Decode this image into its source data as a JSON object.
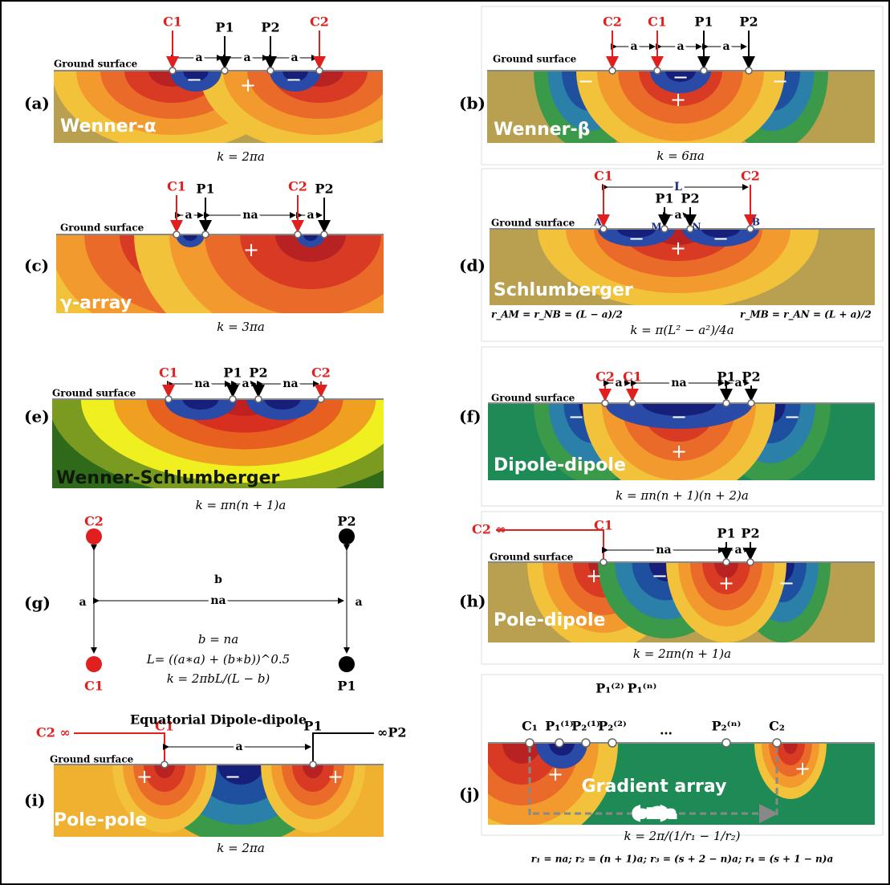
{
  "panels": [
    {
      "label": "(a)",
      "name": "Wenner-α",
      "ground": "Ground surface",
      "electrodes": [
        "C1",
        "P1",
        "P2",
        "C2"
      ],
      "spacings": [
        "a",
        "a",
        "a"
      ],
      "signs": [
        "−",
        "+",
        "−"
      ],
      "formula": "k = 2πa"
    },
    {
      "label": "(b)",
      "name": "Wenner-β",
      "ground": "Ground surface",
      "electrodes": [
        "C2",
        "C1",
        "P1",
        "P2"
      ],
      "spacings": [
        "a",
        "a",
        "a"
      ],
      "signs": [
        "−",
        "−",
        "+",
        "−"
      ],
      "formula": "k = 6πa"
    },
    {
      "label": "(c)",
      "name": "γ-array",
      "ground": "Ground surface",
      "electrodes": [
        "C1",
        "P1",
        "C2",
        "P2"
      ],
      "spacings": [
        "a",
        "na",
        "a"
      ],
      "signs": [
        "+"
      ],
      "formula": "k = 3πa"
    },
    {
      "label": "(d)",
      "name": "Schlumberger",
      "ground": "Ground surface",
      "electrodes": [
        "C1",
        "P1",
        "P2",
        "C2"
      ],
      "spacings": [
        "L",
        "a"
      ],
      "points": [
        "A",
        "M",
        "N",
        "B"
      ],
      "signs": [
        "−",
        "+",
        "−"
      ],
      "notes": [
        "r_AM = r_NB = (L − a)/2",
        "r_MB = r_AN = (L + a)/2"
      ],
      "formula": "k = π(L² − a²)/4a"
    },
    {
      "label": "(e)",
      "name": "Wenner-Schlumberger",
      "ground": "Ground surface",
      "electrodes": [
        "C1",
        "P1",
        "P2",
        "C2"
      ],
      "spacings": [
        "na",
        "a",
        "na"
      ],
      "signs": [],
      "formula": "k = πn(n + 1)a"
    },
    {
      "label": "(f)",
      "name": "Dipole-dipole",
      "ground": "Ground surface",
      "electrodes": [
        "C2",
        "C1",
        "P1",
        "P2"
      ],
      "spacings": [
        "a",
        "na",
        "a"
      ],
      "signs": [
        "−",
        "−",
        "+",
        "−"
      ],
      "formula": "k = πn(n + 1)(n + 2)a"
    },
    {
      "label": "(g)",
      "electrodes": [
        "C2",
        "P2",
        "C1",
        "P1"
      ],
      "spacings": [
        "b",
        "na",
        "a",
        "a"
      ],
      "equations": [
        "b = na",
        "L= ((a∗a) + (b∗b))^0.5",
        "k = 2πbL/(L − b)"
      ],
      "title": "Equatorial Dipole-dipole"
    },
    {
      "label": "(h)",
      "name": "Pole-dipole",
      "ground": "Ground surface",
      "electrodes": [
        "C2 ∞",
        "C1",
        "P1",
        "P2"
      ],
      "spacings": [
        "na",
        "a"
      ],
      "signs": [
        "+",
        "−",
        "+",
        "−"
      ],
      "formula": "k = 2πn(n + 1)a"
    },
    {
      "label": "(i)",
      "name": "Pole-pole",
      "ground": "Ground surface",
      "electrodes": [
        "C2 ∞",
        "C1",
        "P1",
        "∞P2"
      ],
      "spacings": [
        "a"
      ],
      "signs": [
        "+",
        "−",
        "+"
      ],
      "formula": "k = 2πa"
    },
    {
      "label": "(j)",
      "name": "Gradient array",
      "electrodes": [
        "C₁",
        "P₁⁽¹⁾",
        "P₂⁽¹⁾",
        "P₂⁽²⁾",
        "P₂⁽ⁿ⁾",
        "C₂"
      ],
      "top": [
        "P₁⁽²⁾",
        "P₁⁽ⁿ⁾"
      ],
      "ellipsis": "…",
      "spacings": [
        "(s+2)a"
      ],
      "signs": [
        "+",
        "+"
      ],
      "notes": [
        "r₁ = na;  r₂ = (n + 1)a;  r₃ = (s + 2 − n)a;  r₄ = (s + 1 − n)a"
      ],
      "formula": "k = 2π/(1/r₁ − 1/r₂)"
    }
  ]
}
